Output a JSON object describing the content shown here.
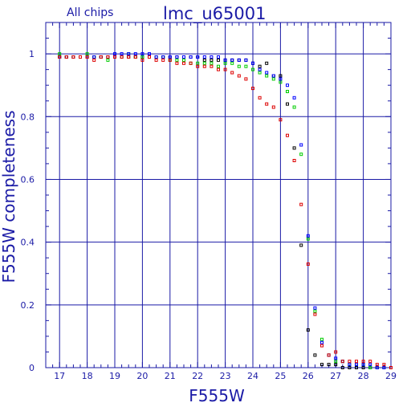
{
  "chart_data": {
    "type": "scatter",
    "title": "lmc_u65001",
    "subtitle": "All chips",
    "xlabel": "F555W",
    "ylabel": "F555W completeness",
    "xlim": [
      16.5,
      29
    ],
    "ylim": [
      0,
      1.1
    ],
    "xticks": [
      "17",
      "18",
      "19",
      "20",
      "21",
      "22",
      "23",
      "24",
      "25",
      "26",
      "27",
      "28",
      "29"
    ],
    "yticks": [
      "0",
      "0.2",
      "0.4",
      "0.6",
      "0.8",
      "1"
    ],
    "ytick_values": [
      0,
      0.2,
      0.4,
      0.6,
      0.8,
      1
    ],
    "grid": true,
    "colors": {
      "axis": "#1a1aa6",
      "grid": "#1a1aa6"
    },
    "series": [
      {
        "color": "#000000",
        "x": [
          17.0,
          17.25,
          17.5,
          17.75,
          18.0,
          18.25,
          18.5,
          18.75,
          19.0,
          19.25,
          19.5,
          19.75,
          20.0,
          20.25,
          20.5,
          20.75,
          21.0,
          21.25,
          21.5,
          21.75,
          22.0,
          22.25,
          22.5,
          22.75,
          23.0,
          23.25,
          23.5,
          23.75,
          24.0,
          24.25,
          24.5,
          24.75,
          25.0,
          25.25,
          25.5,
          25.75,
          26.0,
          26.25,
          26.5,
          26.75,
          27.0,
          27.25,
          27.5,
          27.75,
          28.0,
          28.25,
          28.5,
          28.75,
          29.0
        ],
        "y": [
          0.99,
          0.99,
          0.99,
          0.99,
          0.99,
          0.99,
          0.99,
          0.99,
          0.99,
          0.99,
          0.99,
          0.99,
          0.99,
          0.99,
          0.99,
          0.99,
          0.99,
          0.99,
          0.99,
          0.99,
          0.99,
          0.98,
          0.98,
          0.98,
          0.98,
          0.98,
          0.98,
          0.98,
          0.97,
          0.96,
          0.97,
          0.93,
          0.93,
          0.84,
          0.7,
          0.39,
          0.12,
          0.04,
          0.01,
          0.01,
          0.01,
          0.0,
          0.0,
          0.0,
          0.0,
          0.0,
          0.0,
          0.0,
          0.0
        ]
      },
      {
        "color": "#00cc00",
        "x": [
          17.0,
          17.25,
          17.5,
          17.75,
          18.0,
          18.25,
          18.5,
          18.75,
          19.0,
          19.25,
          19.5,
          19.75,
          20.0,
          20.25,
          20.5,
          20.75,
          21.0,
          21.25,
          21.5,
          21.75,
          22.0,
          22.25,
          22.5,
          22.75,
          23.0,
          23.25,
          23.5,
          23.75,
          24.0,
          24.25,
          24.5,
          24.75,
          25.0,
          25.25,
          25.5,
          25.75,
          26.0,
          26.25,
          26.5,
          26.75,
          27.0,
          27.25,
          27.5,
          27.75,
          28.0,
          28.25,
          28.5,
          28.75,
          29.0
        ],
        "y": [
          1.0,
          0.99,
          0.99,
          0.99,
          1.0,
          0.99,
          0.99,
          0.98,
          0.99,
          0.99,
          1.0,
          0.99,
          0.99,
          0.99,
          0.99,
          0.99,
          0.98,
          0.98,
          0.98,
          0.97,
          0.97,
          0.97,
          0.97,
          0.96,
          0.97,
          0.97,
          0.96,
          0.96,
          0.95,
          0.94,
          0.93,
          0.92,
          0.91,
          0.88,
          0.83,
          0.68,
          0.41,
          0.18,
          0.09,
          0.04,
          0.02,
          0.02,
          0.01,
          0.01,
          0.01,
          0.0,
          0.0,
          0.0,
          0.0
        ]
      },
      {
        "color": "#0000ff",
        "x": [
          17.0,
          17.25,
          17.5,
          17.75,
          18.0,
          18.25,
          18.5,
          18.75,
          19.0,
          19.25,
          19.5,
          19.75,
          20.0,
          20.25,
          20.5,
          20.75,
          21.0,
          21.25,
          21.5,
          21.75,
          22.0,
          22.25,
          22.5,
          22.75,
          23.0,
          23.25,
          23.5,
          23.75,
          24.0,
          24.25,
          24.5,
          24.75,
          25.0,
          25.25,
          25.5,
          25.75,
          26.0,
          26.25,
          26.5,
          26.75,
          27.0,
          27.25,
          27.5,
          27.75,
          28.0,
          28.25,
          28.5,
          28.75,
          29.0
        ],
        "y": [
          0.99,
          0.99,
          0.99,
          0.99,
          0.99,
          0.99,
          0.99,
          0.99,
          1.0,
          1.0,
          1.0,
          1.0,
          1.0,
          1.0,
          0.99,
          0.99,
          0.99,
          0.99,
          0.99,
          0.99,
          0.99,
          0.99,
          0.99,
          0.99,
          0.98,
          0.98,
          0.98,
          0.98,
          0.97,
          0.95,
          0.94,
          0.93,
          0.92,
          0.9,
          0.86,
          0.71,
          0.42,
          0.19,
          0.08,
          0.04,
          0.03,
          0.02,
          0.01,
          0.01,
          0.01,
          0.01,
          0.0,
          0.0,
          0.0
        ]
      },
      {
        "color": "#dd0000",
        "x": [
          17.0,
          17.25,
          17.5,
          17.75,
          18.0,
          18.25,
          18.5,
          18.75,
          19.0,
          19.25,
          19.5,
          19.75,
          20.0,
          20.25,
          20.5,
          20.75,
          21.0,
          21.25,
          21.5,
          21.75,
          22.0,
          22.25,
          22.5,
          22.75,
          23.0,
          23.25,
          23.5,
          23.75,
          24.0,
          24.25,
          24.5,
          24.75,
          25.0,
          25.25,
          25.5,
          25.75,
          26.0,
          26.25,
          26.5,
          26.75,
          27.0,
          27.25,
          27.5,
          27.75,
          28.0,
          28.25,
          28.5,
          28.75,
          29.0
        ],
        "y": [
          0.99,
          0.99,
          0.99,
          0.99,
          0.99,
          0.98,
          0.99,
          0.99,
          0.99,
          0.99,
          0.99,
          0.99,
          0.98,
          0.99,
          0.98,
          0.98,
          0.98,
          0.97,
          0.97,
          0.97,
          0.96,
          0.96,
          0.96,
          0.95,
          0.95,
          0.94,
          0.93,
          0.92,
          0.89,
          0.86,
          0.84,
          0.83,
          0.79,
          0.74,
          0.66,
          0.52,
          0.33,
          0.17,
          0.07,
          0.04,
          0.05,
          0.02,
          0.02,
          0.02,
          0.02,
          0.02,
          0.01,
          0.01,
          0.0
        ]
      }
    ]
  }
}
